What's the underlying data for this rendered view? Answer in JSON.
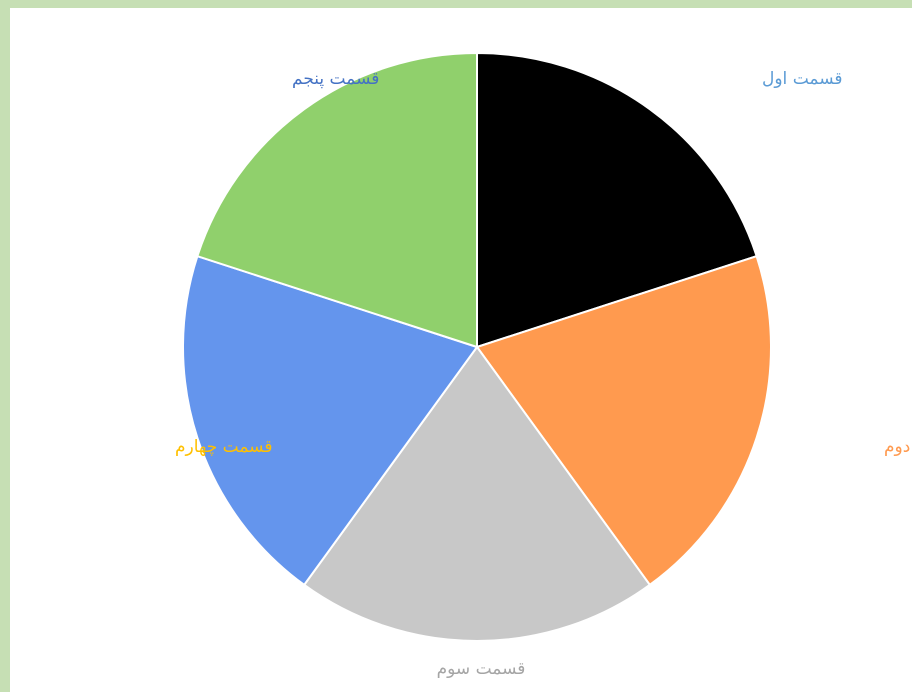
{
  "chart_data": {
    "type": "pie",
    "title": "",
    "start_angle_deg": 0,
    "direction": "clockwise",
    "slices": [
      {
        "label": "قسمت اول",
        "value": 20,
        "color": "#000000",
        "label_color": "#5b9bd5"
      },
      {
        "label": "قسمت دوم",
        "value": 20,
        "color": "#ff9a4f",
        "label_color": "#ff9a4f"
      },
      {
        "label": "قسمت سوم",
        "value": 20,
        "color": "#c8c8c8",
        "label_color": "#a5a5a5"
      },
      {
        "label": "قسمت چهارم",
        "value": 20,
        "color": "#6495ed",
        "label_color": "#ffc000"
      },
      {
        "label": "قسمت پنجم",
        "value": 20,
        "color": "#90d06c",
        "label_color": "#4472c4"
      }
    ],
    "legend": "none"
  },
  "colors": {
    "frame_border": "#c6dfb4",
    "background": "#ffffff"
  }
}
